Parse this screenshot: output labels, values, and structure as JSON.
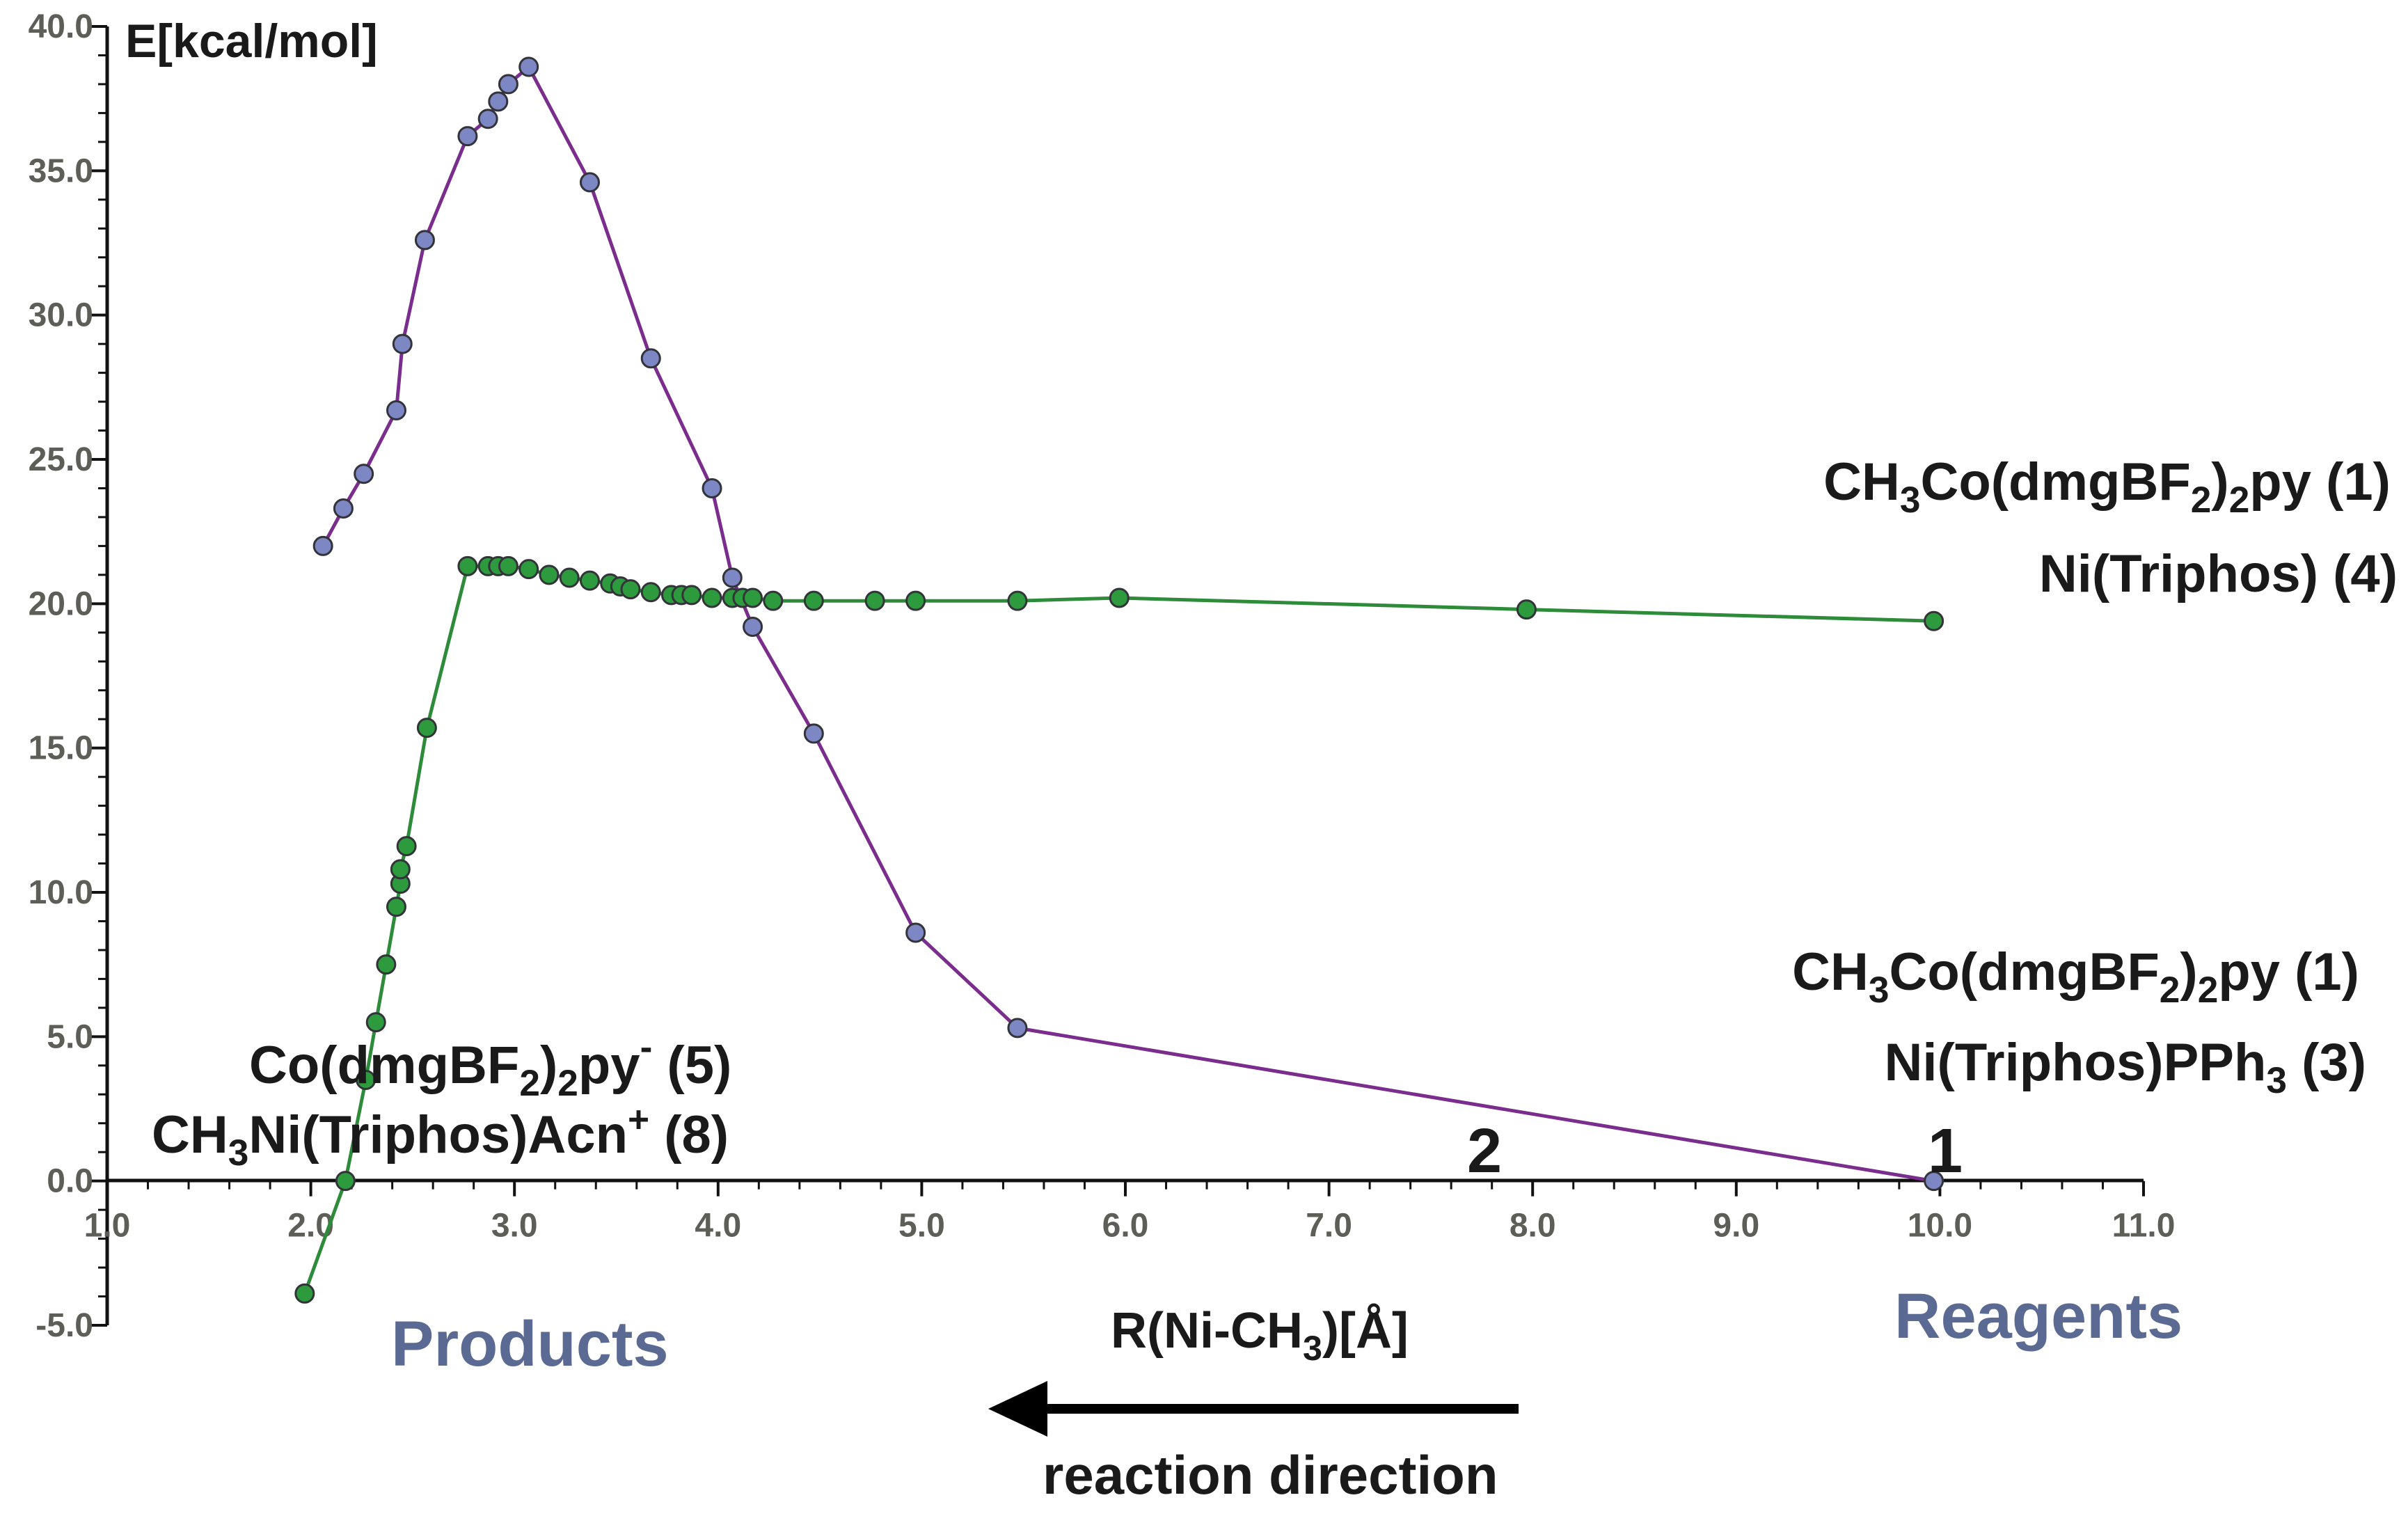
{
  "chart_data": {
    "type": "line",
    "ylabel": "E[kcal/mol]",
    "xlabel": "R(Ni-CH3)[Å]",
    "xlim": [
      1.0,
      11.0
    ],
    "ylim": [
      -5.0,
      40.0
    ],
    "x_ticks": [
      "1.0",
      "2.0",
      "3.0",
      "4.0",
      "5.0",
      "6.0",
      "7.0",
      "8.0",
      "9.0",
      "10.0",
      "11.0"
    ],
    "y_ticks": [
      "-5.0",
      "0.0",
      "5.0",
      "10.0",
      "15.0",
      "20.0",
      "25.0",
      "30.0",
      "35.0",
      "40.0"
    ],
    "series": [
      {
        "name": "purple",
        "line_color": "#7b2d8e",
        "marker_color": "#7c87c4",
        "x": [
          2.06,
          2.16,
          2.26,
          2.42,
          2.45,
          2.56,
          2.77,
          2.87,
          2.92,
          2.97,
          3.07,
          3.37,
          3.67,
          3.97,
          4.07,
          4.17,
          4.47,
          4.97,
          5.47,
          9.97
        ],
        "y": [
          22.0,
          23.3,
          24.5,
          26.7,
          29.0,
          32.6,
          36.2,
          36.8,
          37.4,
          38.0,
          38.6,
          34.6,
          28.5,
          24.0,
          20.9,
          19.2,
          15.5,
          8.6,
          5.3,
          0.0
        ]
      },
      {
        "name": "green",
        "line_color": "#2e8b3a",
        "marker_color": "#2e9a3e",
        "x": [
          1.97,
          2.17,
          2.27,
          2.32,
          2.37,
          2.42,
          2.44,
          2.44,
          2.47,
          2.57,
          2.77,
          2.87,
          2.92,
          2.97,
          3.07,
          3.17,
          3.27,
          3.37,
          3.47,
          3.52,
          3.57,
          3.67,
          3.77,
          3.82,
          3.87,
          3.97,
          4.07,
          4.12,
          4.17,
          4.27,
          4.47,
          4.77,
          4.97,
          5.47,
          5.97,
          7.97,
          9.97
        ],
        "y": [
          -3.9,
          0.0,
          3.5,
          5.5,
          7.5,
          9.5,
          10.3,
          10.8,
          11.6,
          15.7,
          21.3,
          21.3,
          21.3,
          21.3,
          21.2,
          21.0,
          20.9,
          20.8,
          20.7,
          20.6,
          20.5,
          20.4,
          20.3,
          20.3,
          20.3,
          20.2,
          20.2,
          20.2,
          20.2,
          20.1,
          20.1,
          20.1,
          20.1,
          20.1,
          20.2,
          19.8,
          19.4
        ]
      }
    ],
    "annotations": {
      "upper_right_line1": "CH3Co(dmgBF2)2py (1)",
      "upper_right_line2": "Ni(Triphos) (4)",
      "lower_right_line1": "CH3Co(dmgBF2)2py (1)",
      "lower_right_line2": "Ni(Triphos)PPh3 (3)",
      "left_line1": "Co(dmgBF2)2py- (5)",
      "left_line2": "CH3Ni(Triphos)Acn+ (8)",
      "marker_1": "1",
      "marker_2": "2",
      "products": "Products",
      "reagents": "Reagents",
      "direction": "reaction direction"
    }
  }
}
